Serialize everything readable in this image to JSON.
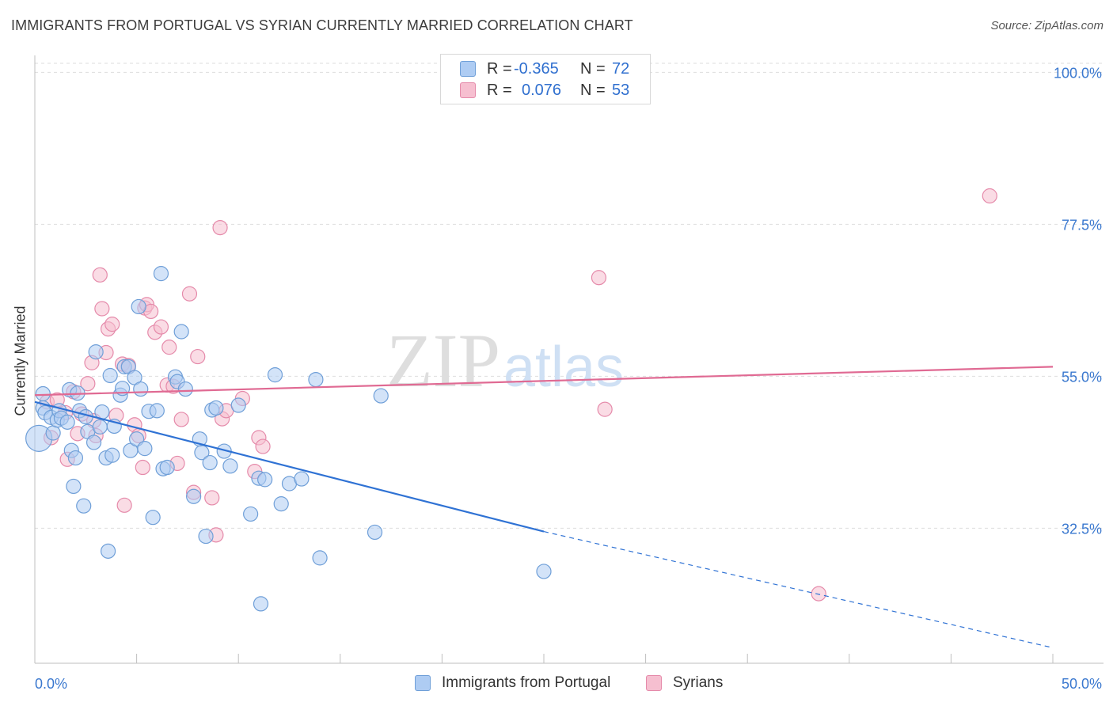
{
  "title": "IMMIGRANTS FROM PORTUGAL VS SYRIAN CURRENTLY MARRIED CORRELATION CHART",
  "source": "Source: ZipAtlas.com",
  "watermark": {
    "zip": "ZIP",
    "atlas": "atlas"
  },
  "colors": {
    "blue_fill": "#aeccf3",
    "blue_stroke": "#6f9fd8",
    "blue_line": "#2f72d4",
    "pink_fill": "#f6bfd0",
    "pink_stroke": "#e58aaa",
    "pink_line": "#e06a93",
    "axis_text": "#3a78cf",
    "grid": "#dddddd"
  },
  "legend": {
    "rows": [
      {
        "r_label": "R =",
        "r_value": "-0.365",
        "n_label": "N =",
        "n_value": "72",
        "series": "blue"
      },
      {
        "r_label": "R =",
        "r_value": "0.076",
        "n_label": "N =",
        "n_value": "53",
        "series": "pink"
      }
    ]
  },
  "bottom_legend": [
    {
      "label": "Immigrants from Portugal",
      "series": "blue"
    },
    {
      "label": "Syrians",
      "series": "pink"
    }
  ],
  "chart_data": {
    "type": "scatter",
    "title": "IMMIGRANTS FROM PORTUGAL VS SYRIAN CURRENTLY MARRIED CORRELATION CHART",
    "xlabel": "",
    "ylabel": "Currently Married",
    "xlim": [
      0,
      50
    ],
    "ylim": [
      12.5,
      102.5
    ],
    "x_tick_labels": [
      {
        "value": 0,
        "label": "0.0%"
      },
      {
        "value": 50,
        "label": "50.0%"
      }
    ],
    "y_tick_labels": [
      {
        "value": 100,
        "label": "100.0%"
      },
      {
        "value": 77.5,
        "label": "77.5%"
      },
      {
        "value": 55,
        "label": "55.0%"
      },
      {
        "value": 32.5,
        "label": "32.5%"
      }
    ],
    "y_gridlines": [
      100,
      77.5,
      55,
      32.5
    ],
    "x_minor_ticks": [
      0,
      5,
      10,
      15,
      20,
      25,
      30,
      35,
      40,
      45,
      50
    ],
    "series": [
      {
        "name": "Immigrants from Portugal",
        "color": "blue",
        "R": -0.365,
        "N": 72,
        "trend": {
          "x": [
            0,
            25
          ],
          "y": [
            51.2,
            32.0
          ],
          "dashed_to": [
            50,
            14.8
          ]
        },
        "points": [
          [
            0.2,
            45.8,
            22
          ],
          [
            0.4,
            52.4,
            12
          ],
          [
            0.4,
            50.3,
            12
          ],
          [
            0.5,
            49.6,
            12
          ],
          [
            0.8,
            48.9,
            12
          ],
          [
            0.9,
            46.6,
            12
          ],
          [
            1.1,
            48.5,
            12
          ],
          [
            1.2,
            49.9,
            12
          ],
          [
            1.3,
            48.8,
            12
          ],
          [
            1.6,
            48.2,
            12
          ],
          [
            1.7,
            53.0,
            12
          ],
          [
            1.8,
            44.0,
            12
          ],
          [
            1.9,
            38.7,
            12
          ],
          [
            2.0,
            42.9,
            12
          ],
          [
            2.1,
            52.5,
            12
          ],
          [
            2.2,
            49.9,
            12
          ],
          [
            2.4,
            35.8,
            12
          ],
          [
            2.5,
            49.0,
            12
          ],
          [
            2.6,
            46.8,
            12
          ],
          [
            2.9,
            45.2,
            12
          ],
          [
            3.0,
            58.6,
            12
          ],
          [
            3.2,
            47.5,
            12
          ],
          [
            3.3,
            49.7,
            12
          ],
          [
            3.5,
            42.9,
            12
          ],
          [
            3.6,
            29.1,
            12
          ],
          [
            3.7,
            55.1,
            12
          ],
          [
            3.8,
            43.3,
            12
          ],
          [
            3.9,
            47.6,
            12
          ],
          [
            4.2,
            52.2,
            12
          ],
          [
            4.3,
            53.2,
            12
          ],
          [
            4.4,
            56.4,
            12
          ],
          [
            4.6,
            56.4,
            12
          ],
          [
            4.7,
            44.0,
            12
          ],
          [
            4.9,
            54.8,
            12
          ],
          [
            5.0,
            45.7,
            12
          ],
          [
            5.1,
            65.3,
            12
          ],
          [
            5.2,
            53.1,
            12
          ],
          [
            5.4,
            44.3,
            12
          ],
          [
            5.6,
            49.8,
            12
          ],
          [
            5.8,
            34.1,
            12
          ],
          [
            6.0,
            49.9,
            12
          ],
          [
            6.2,
            70.2,
            12
          ],
          [
            6.3,
            41.3,
            12
          ],
          [
            6.5,
            41.5,
            12
          ],
          [
            6.9,
            54.9,
            12
          ],
          [
            7.0,
            54.2,
            12
          ],
          [
            7.2,
            61.6,
            12
          ],
          [
            7.4,
            53.1,
            12
          ],
          [
            7.8,
            37.2,
            12
          ],
          [
            8.1,
            45.7,
            12
          ],
          [
            8.2,
            43.7,
            12
          ],
          [
            8.4,
            31.3,
            12
          ],
          [
            8.6,
            42.2,
            12
          ],
          [
            8.7,
            50.0,
            12
          ],
          [
            8.9,
            50.3,
            12
          ],
          [
            9.3,
            43.9,
            12
          ],
          [
            9.6,
            41.7,
            12
          ],
          [
            10.0,
            50.7,
            12
          ],
          [
            10.6,
            34.6,
            12
          ],
          [
            11.0,
            39.9,
            12
          ],
          [
            11.1,
            21.3,
            12
          ],
          [
            11.3,
            39.7,
            12
          ],
          [
            11.8,
            55.2,
            12
          ],
          [
            12.1,
            36.1,
            12
          ],
          [
            12.5,
            39.1,
            12
          ],
          [
            13.1,
            39.8,
            12
          ],
          [
            13.8,
            54.5,
            12
          ],
          [
            14.0,
            28.1,
            12
          ],
          [
            16.7,
            31.9,
            12
          ],
          [
            17.0,
            52.1,
            12
          ],
          [
            25.0,
            26.1,
            12
          ]
        ]
      },
      {
        "name": "Syrians",
        "color": "pink",
        "R": 0.076,
        "N": 53,
        "trend": {
          "x": [
            0,
            50
          ],
          "y": [
            52.2,
            56.4
          ]
        },
        "points": [
          [
            0.6,
            51.2,
            12
          ],
          [
            0.8,
            45.9,
            12
          ],
          [
            1.1,
            51.5,
            12
          ],
          [
            1.5,
            49.6,
            12
          ],
          [
            1.6,
            42.7,
            12
          ],
          [
            1.9,
            52.7,
            12
          ],
          [
            2.1,
            46.5,
            12
          ],
          [
            2.3,
            49.4,
            12
          ],
          [
            2.6,
            53.9,
            12
          ],
          [
            2.8,
            57.0,
            12
          ],
          [
            2.9,
            48.4,
            12
          ],
          [
            3.0,
            46.2,
            12
          ],
          [
            3.2,
            70.0,
            12
          ],
          [
            3.3,
            65.0,
            12
          ],
          [
            3.5,
            58.5,
            12
          ],
          [
            3.6,
            62.0,
            12
          ],
          [
            3.8,
            62.7,
            12
          ],
          [
            4.0,
            49.2,
            12
          ],
          [
            4.3,
            56.8,
            12
          ],
          [
            4.4,
            35.9,
            12
          ],
          [
            4.6,
            56.6,
            12
          ],
          [
            4.9,
            47.8,
            12
          ],
          [
            5.1,
            46.2,
            12
          ],
          [
            5.3,
            41.5,
            12
          ],
          [
            5.4,
            65.1,
            12
          ],
          [
            5.5,
            65.6,
            12
          ],
          [
            5.7,
            64.6,
            12
          ],
          [
            5.9,
            61.5,
            12
          ],
          [
            6.2,
            62.3,
            12
          ],
          [
            6.5,
            53.7,
            12
          ],
          [
            6.6,
            59.3,
            12
          ],
          [
            6.8,
            53.5,
            12
          ],
          [
            7.0,
            42.1,
            12
          ],
          [
            7.2,
            48.6,
            12
          ],
          [
            7.6,
            67.2,
            12
          ],
          [
            7.8,
            37.8,
            12
          ],
          [
            8.0,
            57.9,
            12
          ],
          [
            8.7,
            37.0,
            12
          ],
          [
            8.9,
            31.5,
            12
          ],
          [
            9.1,
            77.0,
            12
          ],
          [
            9.2,
            48.7,
            12
          ],
          [
            9.4,
            49.9,
            12
          ],
          [
            10.2,
            51.7,
            12
          ],
          [
            10.8,
            40.9,
            12
          ],
          [
            11.0,
            45.9,
            12
          ],
          [
            11.2,
            44.6,
            12
          ],
          [
            27.7,
            69.6,
            12
          ],
          [
            28.0,
            50.1,
            12
          ],
          [
            38.5,
            22.8,
            12
          ],
          [
            46.9,
            81.7,
            12
          ]
        ]
      }
    ]
  }
}
